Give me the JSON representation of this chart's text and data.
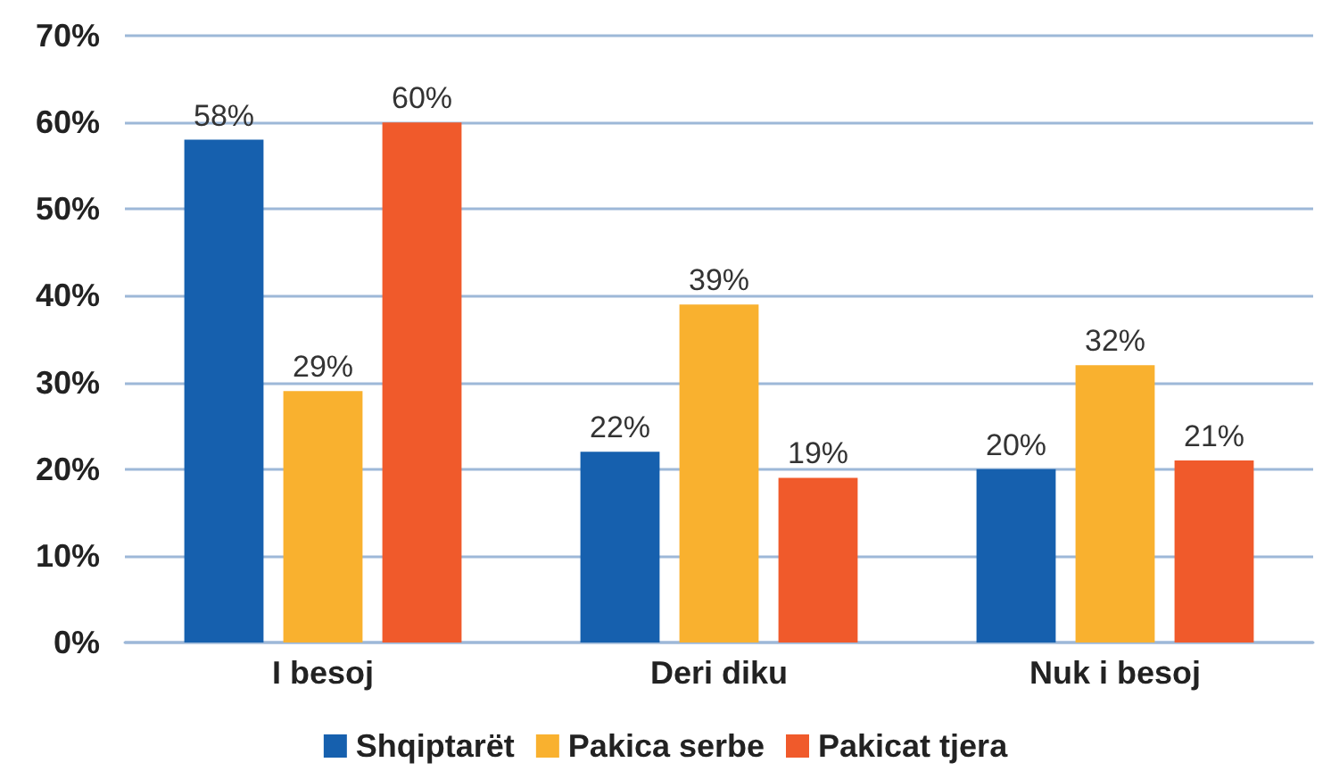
{
  "chart_data": {
    "type": "bar",
    "categories": [
      "I besoj",
      "Deri diku",
      "Nuk i besoj"
    ],
    "series": [
      {
        "name": "Shqiptarët",
        "color": "#1660ae",
        "values": [
          58,
          22,
          20
        ],
        "value_labels": [
          "58%",
          "22%",
          "20%"
        ]
      },
      {
        "name": "Pakica serbe",
        "color": "#f9b12f",
        "values": [
          29,
          39,
          32
        ],
        "value_labels": [
          "29%",
          "39%",
          "32%"
        ]
      },
      {
        "name": "Pakicat tjera",
        "color": "#f05a2b",
        "values": [
          60,
          19,
          21
        ],
        "value_labels": [
          "60%",
          "19%",
          "21%"
        ]
      }
    ],
    "ylim": [
      0,
      70
    ],
    "yticks": [
      {
        "value": 0,
        "label": "0%"
      },
      {
        "value": 10,
        "label": "10%"
      },
      {
        "value": 20,
        "label": "20%"
      },
      {
        "value": 30,
        "label": "30%"
      },
      {
        "value": 40,
        "label": "40%"
      },
      {
        "value": 50,
        "label": "50%"
      },
      {
        "value": 60,
        "label": "60%"
      },
      {
        "value": 70,
        "label": "70%"
      }
    ],
    "grid": "y",
    "legend": "bottom"
  }
}
